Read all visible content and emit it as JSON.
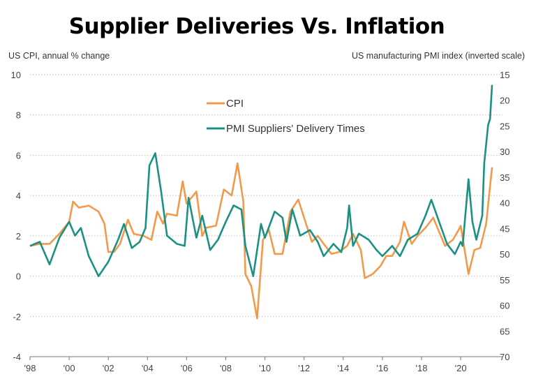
{
  "chart_data": {
    "type": "line",
    "title": "Supplier Deliveries Vs. Inflation",
    "ylabel_left": "US CPI, annual % change",
    "ylabel_right": "US manufacturing PMI index (inverted scale)",
    "ylim_left": [
      -4,
      10
    ],
    "ylim_right": [
      70,
      15
    ],
    "right_axis_inverted": true,
    "yticks_left": [
      "10",
      "8",
      "6",
      "4",
      "2",
      "0",
      "-2",
      "-4"
    ],
    "yticks_right": [
      "15",
      "20",
      "25",
      "30",
      "35",
      "40",
      "45",
      "50",
      "55",
      "60",
      "65",
      "70"
    ],
    "xticks": [
      "'98",
      "'00",
      "'02",
      "'04",
      "'06",
      "'08",
      "'10",
      "'12",
      "'14",
      "'16",
      "'18",
      "'20"
    ],
    "xlim": [
      1998,
      2021.9
    ],
    "grid": "horizontal dotted",
    "legend_position": "top-center",
    "colors": {
      "CPI": "#f39a4a",
      "PMI": "#1a9184"
    },
    "series": [
      {
        "name": "CPI",
        "axis": "left",
        "x": [
          1998.0,
          1998.5,
          1999.0,
          1999.5,
          2000.0,
          2000.2,
          2000.5,
          2001.0,
          2001.5,
          2001.8,
          2002.0,
          2002.3,
          2002.6,
          2003.0,
          2003.3,
          2003.8,
          2004.2,
          2004.5,
          2004.8,
          2005.0,
          2005.5,
          2005.8,
          2006.0,
          2006.5,
          2006.8,
          2007.0,
          2007.5,
          2007.9,
          2008.3,
          2008.6,
          2008.9,
          2009.0,
          2009.3,
          2009.6,
          2009.9,
          2010.2,
          2010.5,
          2010.9,
          2011.3,
          2011.7,
          2012.0,
          2012.4,
          2012.7,
          2013.0,
          2013.4,
          2013.8,
          2014.2,
          2014.5,
          2014.9,
          2015.1,
          2015.5,
          2015.9,
          2016.2,
          2016.5,
          2016.9,
          2017.1,
          2017.5,
          2017.8,
          2018.2,
          2018.6,
          2018.9,
          2019.2,
          2019.6,
          2019.9,
          2020.0,
          2020.4,
          2020.7,
          2021.0,
          2021.3,
          2021.6
        ],
        "values": [
          1.5,
          1.6,
          1.6,
          2.1,
          2.7,
          3.7,
          3.4,
          3.5,
          3.2,
          2.6,
          1.2,
          1.2,
          1.6,
          2.8,
          2.1,
          2.0,
          1.8,
          3.2,
          2.6,
          3.1,
          3.0,
          4.7,
          3.6,
          4.2,
          2.0,
          2.4,
          2.5,
          4.3,
          4.0,
          5.6,
          3.7,
          0.1,
          -0.5,
          -2.1,
          1.8,
          2.3,
          1.1,
          1.1,
          3.2,
          3.8,
          2.9,
          1.7,
          2.0,
          1.6,
          1.1,
          1.2,
          1.5,
          2.1,
          1.3,
          -0.1,
          0.1,
          0.5,
          1.0,
          1.0,
          1.7,
          2.7,
          1.6,
          2.0,
          2.4,
          2.9,
          2.2,
          1.5,
          1.8,
          2.3,
          2.5,
          0.1,
          1.3,
          1.4,
          2.6,
          5.4
        ]
      },
      {
        "name": "PMI Suppliers' Delivery Times",
        "axis": "right",
        "x": [
          1998.0,
          1998.5,
          1999.0,
          1999.5,
          2000.0,
          2000.3,
          2000.6,
          2001.0,
          2001.5,
          2002.0,
          2002.5,
          2002.8,
          2003.2,
          2003.6,
          2003.9,
          2004.1,
          2004.4,
          2004.7,
          2005.0,
          2005.5,
          2005.9,
          2006.1,
          2006.5,
          2006.8,
          2007.2,
          2007.6,
          2008.0,
          2008.4,
          2008.8,
          2009.0,
          2009.4,
          2009.8,
          2010.0,
          2010.5,
          2010.9,
          2011.1,
          2011.4,
          2011.8,
          2012.3,
          2012.7,
          2013.0,
          2013.5,
          2013.9,
          2014.2,
          2014.3,
          2014.5,
          2014.8,
          2015.3,
          2015.7,
          2016.0,
          2016.5,
          2016.9,
          2017.3,
          2017.8,
          2018.2,
          2018.5,
          2018.9,
          2019.3,
          2019.7,
          2020.0,
          2020.1,
          2020.4,
          2020.6,
          2020.8,
          2021.1,
          2021.2,
          2021.4,
          2021.5,
          2021.6
        ],
        "values": [
          48.4,
          47.6,
          52,
          46.8,
          43.7,
          46.4,
          44.9,
          50.4,
          54.3,
          51.5,
          47.2,
          44.1,
          48.8,
          47.6,
          44.9,
          32.7,
          30.3,
          37.8,
          46.4,
          48,
          48.4,
          39,
          46.8,
          42.5,
          49.2,
          47.2,
          43.7,
          40.5,
          41.3,
          48.4,
          54.3,
          44.1,
          46.8,
          41.7,
          42.9,
          47.6,
          41.3,
          46.4,
          45.3,
          47.6,
          50.4,
          48,
          49.6,
          44.9,
          40.5,
          48.4,
          46,
          47.2,
          49.2,
          50.4,
          48.4,
          50.4,
          47.2,
          46,
          42.5,
          39.4,
          43.7,
          48,
          50,
          47.6,
          48.4,
          35.4,
          43.7,
          47.2,
          42.5,
          32.3,
          24.8,
          23.6,
          17
        ]
      }
    ]
  }
}
